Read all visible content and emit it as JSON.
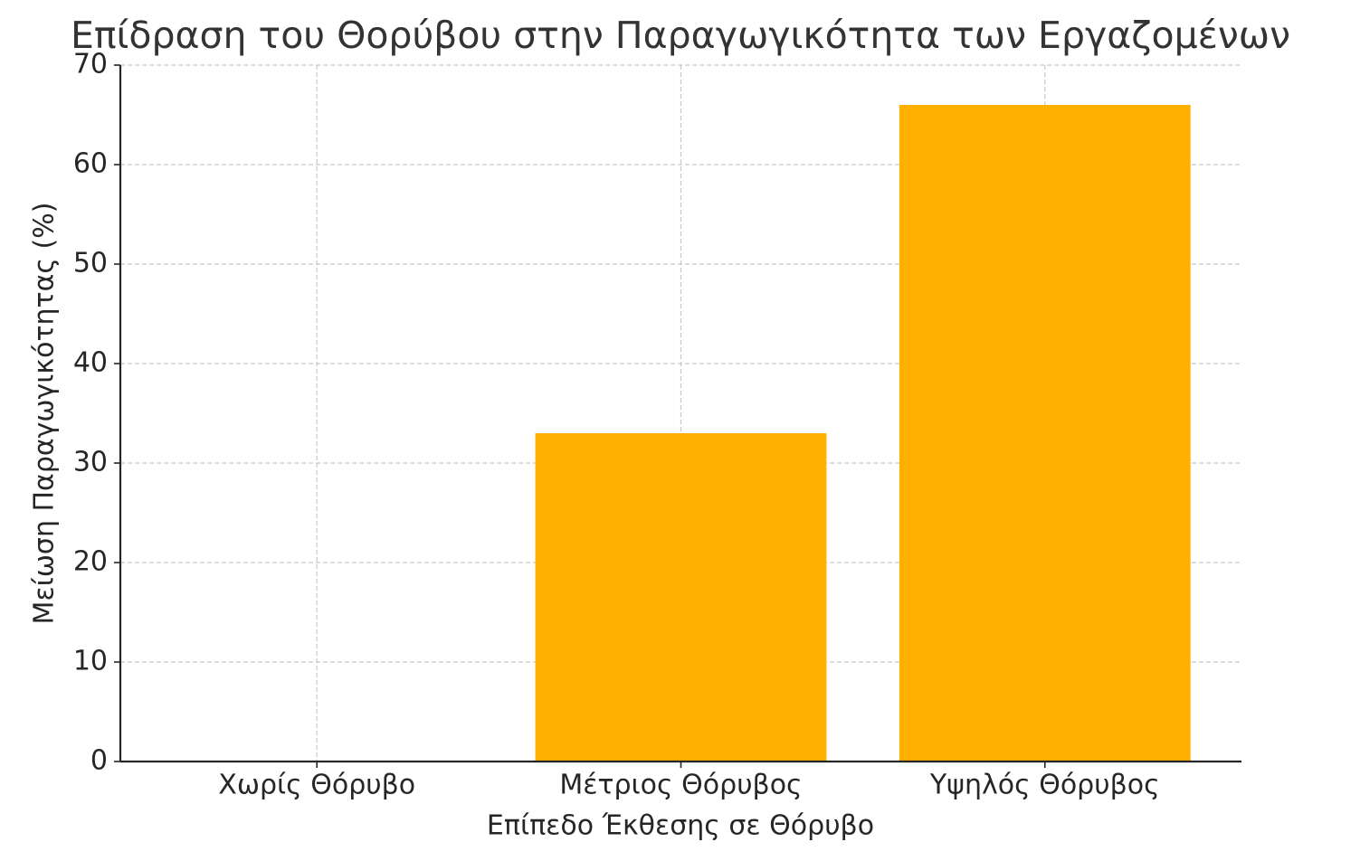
{
  "chart_data": {
    "type": "bar",
    "title": "Επίδραση του Θορύβου στην Παραγωγικότητα των Εργαζομένων",
    "x_label": "Επίπεδο Έκθεσης σε Θόρυβο",
    "y_label": "Μείωση Παραγωγικότητας (%)",
    "categories": [
      "Χωρίς Θόρυβο",
      "Μέτριος Θόρυβος",
      "Υψηλός Θόρυβος"
    ],
    "values": [
      0,
      33,
      66
    ],
    "color": "#ffb000",
    "ylim": [
      0,
      70
    ],
    "yticks": [
      0,
      10,
      20,
      30,
      40,
      50,
      60,
      70
    ],
    "grid": true
  }
}
